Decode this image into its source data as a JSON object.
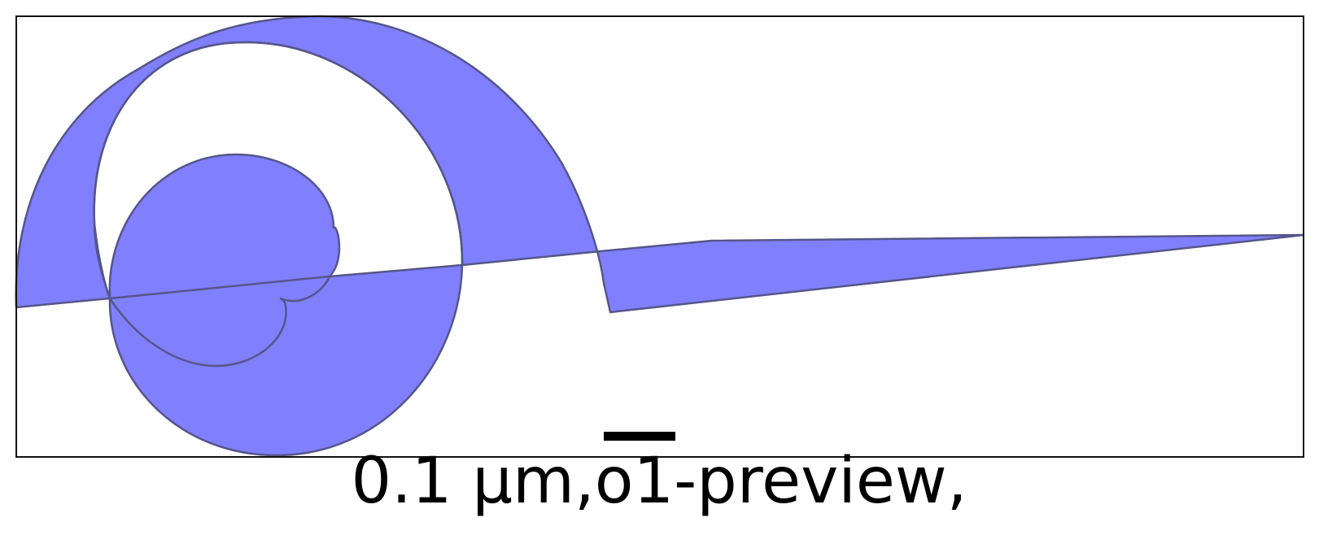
{
  "caption": "0.1 µm,o1-preview,",
  "colors": {
    "fill": "#8080ff",
    "stroke": "#55558a",
    "frame": "#111111",
    "scale_bar": "#000000",
    "background": "#ffffff"
  }
}
